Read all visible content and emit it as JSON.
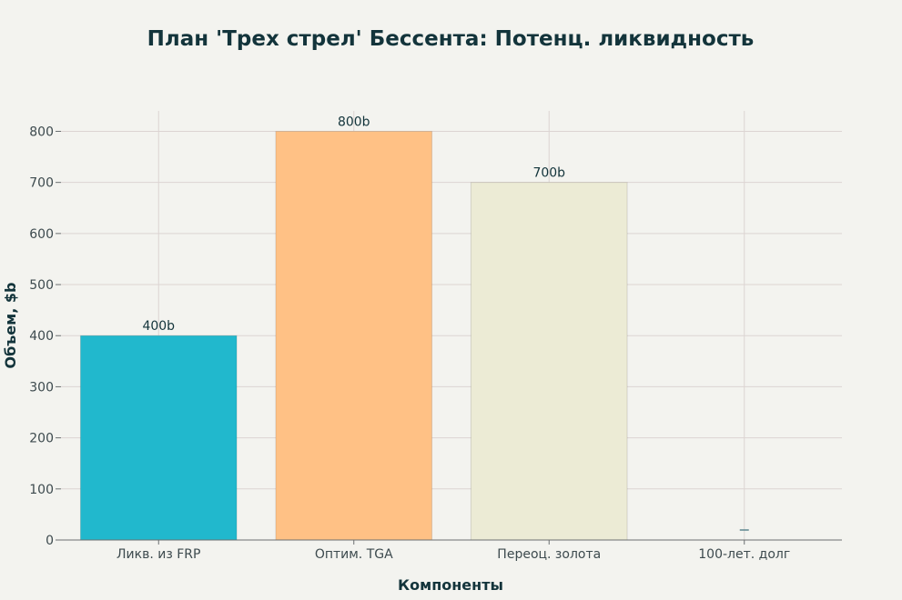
{
  "chart_data": {
    "type": "bar",
    "title": "План 'Трех стрел' Бессента: Потенц. ликвидность",
    "xlabel": "Компоненты",
    "ylabel": "Объем, $b",
    "categories": [
      "Ликв. из FRP",
      "Оптим. TGA",
      "Переоц. золота",
      "100-лет. долг"
    ],
    "values": [
      400,
      800,
      700,
      0
    ],
    "data_labels": [
      "400b",
      "800b",
      "700b",
      ""
    ],
    "colors": [
      "#21b8cd",
      "#ffc185",
      "#ecebd5",
      "#5d878f"
    ],
    "ylim": [
      0,
      840
    ],
    "yticks": [
      0,
      100,
      200,
      300,
      400,
      500,
      600,
      700,
      800
    ],
    "grid": true,
    "legend": "none"
  }
}
